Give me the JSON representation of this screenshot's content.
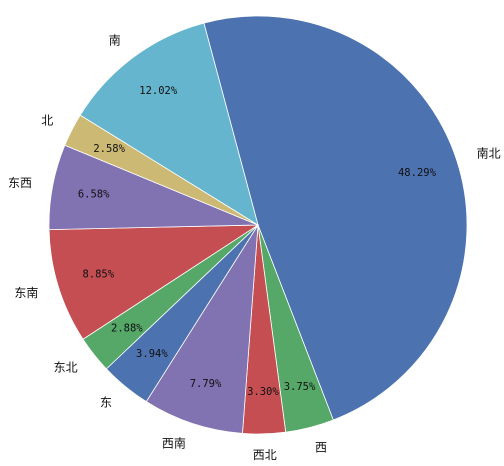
{
  "chart_data": {
    "type": "pie",
    "title": "",
    "start_direction": "counterclockwise from top",
    "slices": [
      {
        "label": "南北",
        "value": 48.29,
        "pct_label": "48.29%",
        "color": "#4C72B0"
      },
      {
        "label": "西",
        "value": 3.75,
        "pct_label": "3.75%",
        "color": "#55A868"
      },
      {
        "label": "西北",
        "value": 3.3,
        "pct_label": "3.30%",
        "color": "#C44E52"
      },
      {
        "label": "西南",
        "value": 7.79,
        "pct_label": "7.79%",
        "color": "#8172B2"
      },
      {
        "label": "东",
        "value": 3.94,
        "pct_label": "3.94%",
        "color": "#4C72B0"
      },
      {
        "label": "东北",
        "value": 2.88,
        "pct_label": "2.88%",
        "color": "#55A868"
      },
      {
        "label": "东南",
        "value": 8.85,
        "pct_label": "8.85%",
        "color": "#C44E52"
      },
      {
        "label": "东西",
        "value": 6.58,
        "pct_label": "6.58%",
        "color": "#8172B2"
      },
      {
        "label": "北",
        "value": 2.58,
        "pct_label": "2.58%",
        "color": "#CCB974"
      },
      {
        "label": "南",
        "value": 12.02,
        "pct_label": "12.02%",
        "color": "#64B5CD"
      }
    ]
  }
}
